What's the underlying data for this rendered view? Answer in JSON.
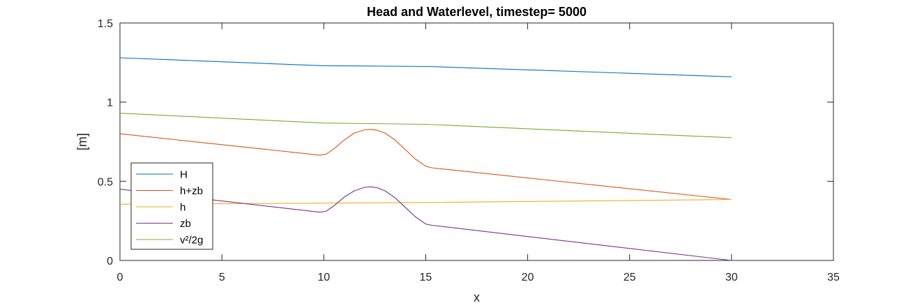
{
  "chart_data": {
    "type": "line",
    "title": "Head and Waterlevel, timestep= 5000",
    "xlabel": "x",
    "ylabel": "[m]",
    "xlim": [
      0,
      35
    ],
    "ylim": [
      0,
      1.5
    ],
    "xticks": [
      0,
      5,
      10,
      15,
      20,
      25,
      30,
      35
    ],
    "yticks": [
      0,
      0.5,
      1,
      1.5
    ],
    "xtick_labels": [
      "0",
      "5",
      "10",
      "15",
      "20",
      "25",
      "30",
      "35"
    ],
    "ytick_labels": [
      "0",
      "0.5",
      "1",
      "1.5"
    ],
    "grid": false,
    "legend_position": "bottom-left",
    "series": [
      {
        "name": "H",
        "color": "#0072BD",
        "x": [
          0,
          10,
          15.2,
          30
        ],
        "y": [
          1.28,
          1.23,
          1.225,
          1.16
        ]
      },
      {
        "name": "h+zb",
        "color": "#D95319",
        "x": [
          0,
          9.8,
          10.1,
          10.5,
          11,
          11.5,
          12,
          12.3,
          12.6,
          13,
          13.5,
          14,
          14.5,
          15,
          15.3,
          30
        ],
        "y": [
          0.8,
          0.665,
          0.67,
          0.705,
          0.76,
          0.805,
          0.825,
          0.828,
          0.823,
          0.805,
          0.76,
          0.7,
          0.64,
          0.595,
          0.585,
          0.385
        ]
      },
      {
        "name": "h",
        "color": "#EDB120",
        "x": [
          0,
          10,
          15,
          30
        ],
        "y": [
          0.355,
          0.362,
          0.366,
          0.385
        ]
      },
      {
        "name": "zb",
        "color": "#7E2F8E",
        "x": [
          0,
          9.8,
          10.1,
          10.5,
          11,
          11.5,
          12,
          12.3,
          12.6,
          13,
          13.5,
          14,
          14.5,
          15,
          15.3,
          30
        ],
        "y": [
          0.45,
          0.305,
          0.31,
          0.345,
          0.4,
          0.44,
          0.462,
          0.465,
          0.46,
          0.44,
          0.395,
          0.335,
          0.275,
          0.23,
          0.222,
          0.0
        ]
      },
      {
        "name": "v²/2g",
        "color": "#77AC30",
        "x": [
          0,
          10,
          15,
          30
        ],
        "y": [
          0.93,
          0.868,
          0.86,
          0.775
        ]
      }
    ]
  }
}
